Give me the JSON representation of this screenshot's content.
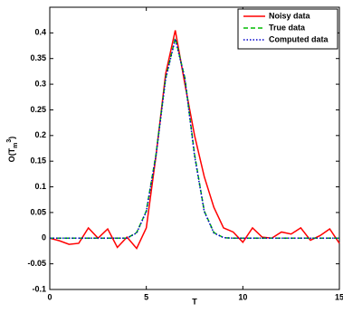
{
  "chart_data": {
    "type": "line",
    "xlabel": "T",
    "ylabel": {
      "base": "O(T",
      "sub": "m",
      "sup": "3",
      "end": ")"
    },
    "x": [
      0,
      0.5,
      1,
      1.5,
      2,
      2.5,
      3,
      3.5,
      4,
      4.5,
      5,
      5.5,
      6,
      6.5,
      7,
      7.5,
      8,
      8.5,
      9,
      9.5,
      10,
      10.5,
      11,
      11.5,
      12,
      12.5,
      13,
      13.5,
      14,
      14.5,
      15
    ],
    "series": [
      {
        "name": "Noisy data",
        "color": "#ff0000",
        "dash": "solid",
        "values": [
          0,
          -0.005,
          -0.012,
          -0.01,
          0.02,
          0,
          0.018,
          -0.018,
          0.002,
          -0.02,
          0.02,
          0.16,
          0.32,
          0.405,
          0.3,
          0.2,
          0.12,
          0.06,
          0.02,
          0.012,
          -0.008,
          0.02,
          0.002,
          0,
          0.012,
          0.008,
          0.02,
          -0.004,
          0.005,
          0.018,
          -0.01
        ]
      },
      {
        "name": "True data",
        "color": "#00bb00",
        "dash": "dashed",
        "values": [
          0,
          0,
          0,
          0,
          0,
          0,
          0,
          0,
          0,
          0.011,
          0.053,
          0.163,
          0.312,
          0.39,
          0.312,
          0.163,
          0.053,
          0.011,
          0.001,
          0,
          0,
          0,
          0,
          0,
          0,
          0,
          0,
          0,
          0,
          0,
          0
        ]
      },
      {
        "name": "Computed data",
        "color": "#0000cc",
        "dash": "dotted",
        "values": [
          0,
          0,
          0,
          0,
          0,
          0,
          0,
          0,
          0,
          0.01,
          0.052,
          0.16,
          0.31,
          0.388,
          0.31,
          0.16,
          0.052,
          0.01,
          0.001,
          0,
          0,
          0,
          0,
          0,
          0,
          0,
          0,
          0,
          0,
          0,
          0
        ]
      }
    ],
    "xlim": [
      0,
      15
    ],
    "xticks": [
      0,
      5,
      10,
      15
    ],
    "ylim": [
      -0.1,
      0.45
    ],
    "yticks": [
      -0.1,
      -0.05,
      0,
      0.05,
      0.1,
      0.15,
      0.2,
      0.25,
      0.3,
      0.35,
      0.4
    ],
    "legend": "upper right"
  }
}
